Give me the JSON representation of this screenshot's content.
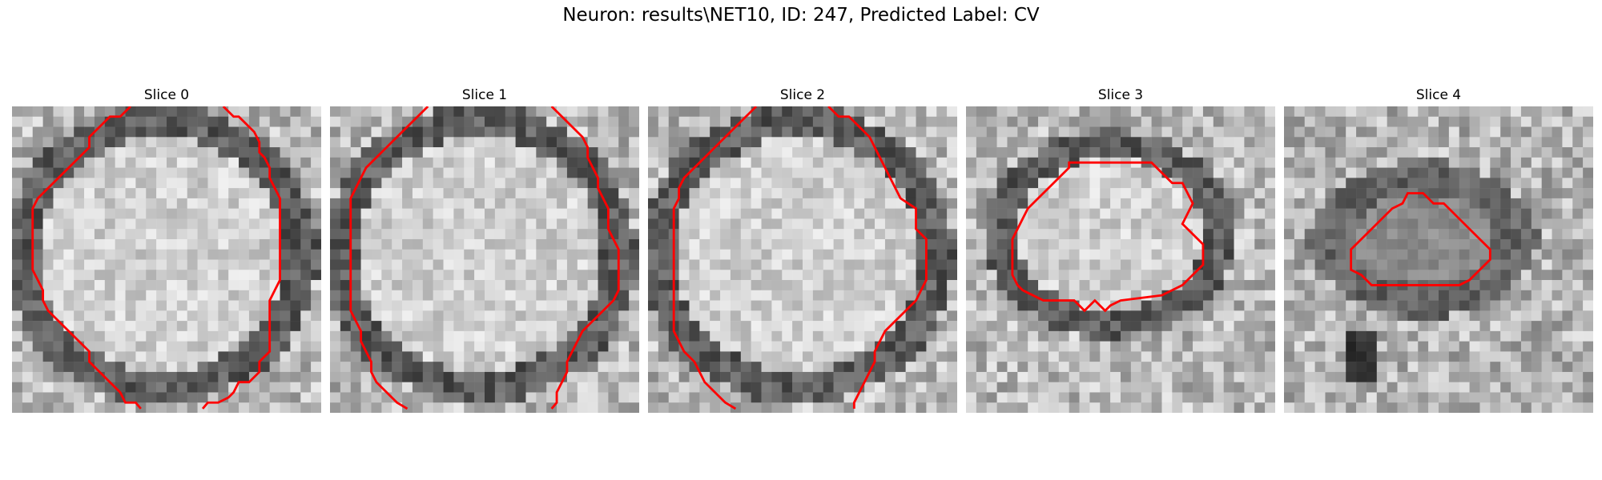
{
  "figure": {
    "title": "Neuron: results\\NET10, ID: 247, Predicted Label: CV"
  },
  "panels": [
    {
      "title": "Slice 0",
      "seed": 11,
      "pattern": "big",
      "contour_color": "#ff0000"
    },
    {
      "title": "Slice 1",
      "seed": 23,
      "pattern": "big",
      "contour_color": "#ff0000"
    },
    {
      "title": "Slice 2",
      "seed": 37,
      "pattern": "big",
      "contour_color": "#ff0000"
    },
    {
      "title": "Slice 3",
      "seed": 53,
      "pattern": "mid",
      "contour_color": "#ff0000"
    },
    {
      "title": "Slice 4",
      "seed": 71,
      "pattern": "small",
      "contour_color": "#ff0000"
    }
  ]
}
